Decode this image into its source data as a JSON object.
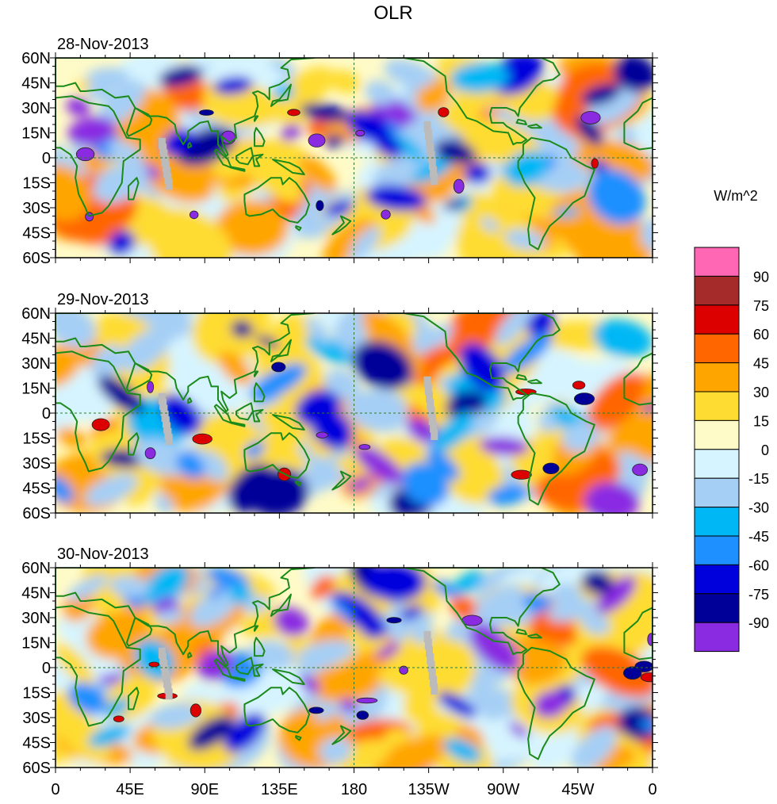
{
  "title": "OLR",
  "colorbar": {
    "units": "W/m^2",
    "levels": [
      "90",
      "75",
      "60",
      "45",
      "30",
      "15",
      "0",
      "-15",
      "-30",
      "-45",
      "-60",
      "-75",
      "-90"
    ],
    "colors": [
      "#ff66b3",
      "#a52a2a",
      "#dd0000",
      "#ff6600",
      "#ffa500",
      "#fedc31",
      "#fffbc8",
      "#d6f4ff",
      "#a6cff5",
      "#00b7f5",
      "#1e90ff",
      "#0000dd",
      "#000099",
      "#8a2be2"
    ]
  },
  "axes": {
    "lat_labels": [
      "60N",
      "45N",
      "30N",
      "15N",
      "0",
      "15S",
      "30S",
      "45S",
      "60S"
    ],
    "lon_labels": [
      "0",
      "45E",
      "90E",
      "135E",
      "180",
      "135W",
      "90W",
      "45W",
      "0"
    ]
  },
  "panels": [
    {
      "date": "28-Nov-2013"
    },
    {
      "date": "29-Nov-2013"
    },
    {
      "date": "30-Nov-2013"
    }
  ],
  "colors": {
    "coast": "#1a8a1a",
    "missing": "#bbbbbb",
    "frame": "#000000"
  }
}
